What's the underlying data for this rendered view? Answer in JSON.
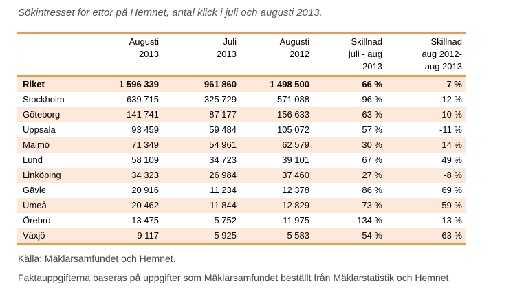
{
  "title": "Sökintresset för ettor på Hemnet, antal klick i juli och augusti 2013.",
  "table": {
    "headers": [
      [
        ""
      ],
      [
        "Augusti",
        "2013"
      ],
      [
        "Juli",
        "2013"
      ],
      [
        "Augusti",
        "2012"
      ],
      [
        "Skillnad",
        "juli - aug",
        "2013"
      ],
      [
        "Skillnad",
        "aug 2012-",
        "aug 2013"
      ]
    ],
    "rows": [
      [
        "Riket",
        "1 596 339",
        "961 860",
        "1 498 500",
        "66 %",
        "7 %"
      ],
      [
        "Stockholm",
        "639 715",
        "325 729",
        "571 088",
        "96 %",
        "12 %"
      ],
      [
        "Göteborg",
        "141 741",
        "87 177",
        "156 633",
        "63 %",
        "-10 %"
      ],
      [
        "Uppsala",
        "93 459",
        "59 484",
        "105 072",
        "57 %",
        "-11 %"
      ],
      [
        "Malmö",
        "71 349",
        "54 961",
        "62 579",
        "30 %",
        "14 %"
      ],
      [
        "Lund",
        "58 109",
        "34 723",
        "39 101",
        "67 %",
        "49 %"
      ],
      [
        "Linköping",
        "34 323",
        "26 984",
        "37 460",
        "27 %",
        "-8 %"
      ],
      [
        "Gävle",
        "20 916",
        "11 234",
        "12 378",
        "86 %",
        "69 %"
      ],
      [
        "Umeå",
        "20 462",
        "11 844",
        "12 829",
        "73 %",
        "59 %"
      ],
      [
        "Örebro",
        "13 475",
        "5 752",
        "11 975",
        "134 %",
        "13 %"
      ],
      [
        "Växjö",
        "9 117",
        "5 925",
        "5 583",
        "54 %",
        "63 %"
      ]
    ]
  },
  "source": "Källa: Mäklarsamfundet och Hemnet.",
  "note": "Faktauppgifterna baseras på uppgifter som Mäklarsamfundet beställt från Mäklarstatistik och Hemnet",
  "colors": {
    "accent": "#f7964a",
    "band": "#fde9d9"
  }
}
